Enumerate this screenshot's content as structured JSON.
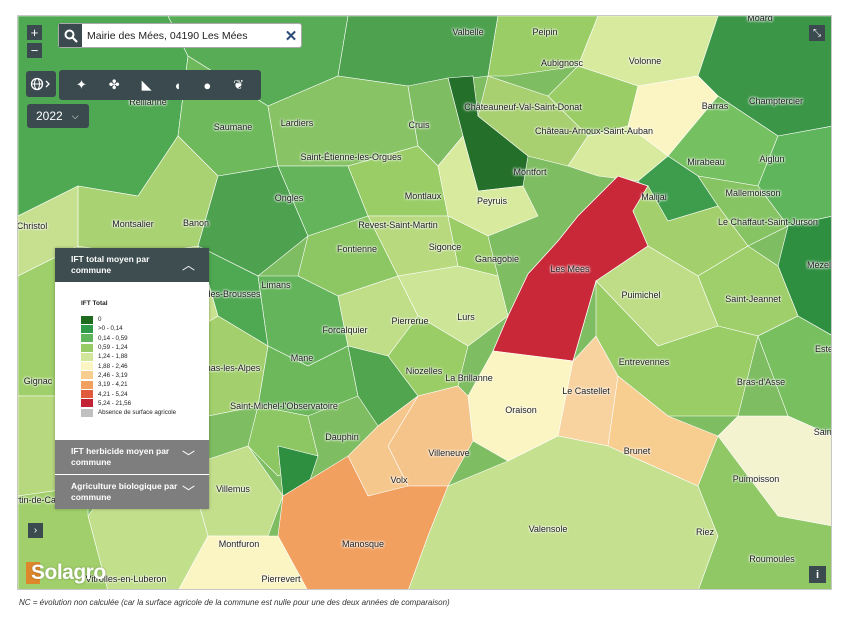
{
  "search": {
    "value": "Mairie des Mées, 04190 Les Mées"
  },
  "controls": {
    "zoom_in": "+",
    "zoom_out": "−",
    "year": "2022"
  },
  "panels": {
    "ift_total": {
      "title": "IFT total moyen par commune",
      "expanded": true
    },
    "ift_herbicide": {
      "title": "IFT herbicide moyen par commune",
      "expanded": false
    },
    "bio": {
      "title": "Agriculture biologique par commune",
      "expanded": false
    }
  },
  "legend": {
    "title": "IFT Total",
    "items": [
      {
        "label": "0",
        "color": "#1e6b1e"
      },
      {
        "label": ">0 - 0,14",
        "color": "#2f9a49"
      },
      {
        "label": "0,14 - 0,59",
        "color": "#5fb55b"
      },
      {
        "label": "0,59 - 1,24",
        "color": "#96cb66"
      },
      {
        "label": "1,24 - 1,88",
        "color": "#d1e69a"
      },
      {
        "label": "1,88 - 2,46",
        "color": "#fbf5c4"
      },
      {
        "label": "2,46 - 3,19",
        "color": "#f7cd90"
      },
      {
        "label": "3,19 - 4,21",
        "color": "#f2a05f"
      },
      {
        "label": "4,21 - 5,24",
        "color": "#e15a3e"
      },
      {
        "label": "5,24 - 21,56",
        "color": "#c22233"
      },
      {
        "label": "Absence de surface agricole",
        "color": "#c0c0c0"
      }
    ]
  },
  "places": [
    {
      "name": "Valbelle"
    },
    {
      "name": "Peipin"
    },
    {
      "name": "Aubignosc"
    },
    {
      "name": "Volonne"
    },
    {
      "name": "Reillanne"
    },
    {
      "name": "Saumane"
    },
    {
      "name": "Lardiers"
    },
    {
      "name": "Cruis"
    },
    {
      "name": "Châteauneuf-Val-Saint-Donat"
    },
    {
      "name": "Château-Arnoux-Saint-Auban"
    },
    {
      "name": "Barras"
    },
    {
      "name": "Champtercier"
    },
    {
      "name": "Saint-Étienne-les-Orgues"
    },
    {
      "name": "Aiglun"
    },
    {
      "name": "Mirabeau"
    },
    {
      "name": "Montfort"
    },
    {
      "name": "Mallemoisson"
    },
    {
      "name": "Montlaux"
    },
    {
      "name": "Malijai"
    },
    {
      "name": "Ongles"
    },
    {
      "name": "Peyruis"
    },
    {
      "name": "Christol"
    },
    {
      "name": "Montsalier"
    },
    {
      "name": "Banon"
    },
    {
      "name": "Revest-Saint-Martin"
    },
    {
      "name": "Le Chaffaut-Saint-Jurson"
    },
    {
      "name": "Sigonce"
    },
    {
      "name": "Fontienne"
    },
    {
      "name": "Ganagobie"
    },
    {
      "name": "Mézel"
    },
    {
      "name": "Les Mées"
    },
    {
      "name": "Limans"
    },
    {
      "name": "des-Brousses"
    },
    {
      "name": "Puimichel"
    },
    {
      "name": "Saint-Jeannet"
    },
    {
      "name": "Lurs"
    },
    {
      "name": "Pierrerue"
    },
    {
      "name": "Forcalquier"
    },
    {
      "name": "Mane"
    },
    {
      "name": "Entrevennes"
    },
    {
      "name": "Este"
    },
    {
      "name": "Gignac"
    },
    {
      "name": "nas-les-Alpes"
    },
    {
      "name": "Niozelles"
    },
    {
      "name": "La Brillanne"
    },
    {
      "name": "Le Castellet"
    },
    {
      "name": "Bras-d'Asse"
    },
    {
      "name": "Saint-Michel-l'Observatoire"
    },
    {
      "name": "Oraison"
    },
    {
      "name": "Saint"
    },
    {
      "name": "Dauphin"
    },
    {
      "name": "Brunet"
    },
    {
      "name": "Villeneuve"
    },
    {
      "name": "Volx"
    },
    {
      "name": "Puimoisson"
    },
    {
      "name": "Villemus"
    },
    {
      "name": "rtin-de-Ca"
    },
    {
      "name": "Valensole"
    },
    {
      "name": "Manosque"
    },
    {
      "name": "Riez"
    },
    {
      "name": "Montfuron"
    },
    {
      "name": "Roumoules"
    },
    {
      "name": "Vitrolles-en-Luberon"
    },
    {
      "name": "Pierrevert"
    },
    {
      "name": "Moard"
    }
  ],
  "logo": {
    "text": "Solagro"
  },
  "footnote": "NC = évolution non calculée (car la surface agricole de la commune est nulle pour une des deux années de comparaison)"
}
